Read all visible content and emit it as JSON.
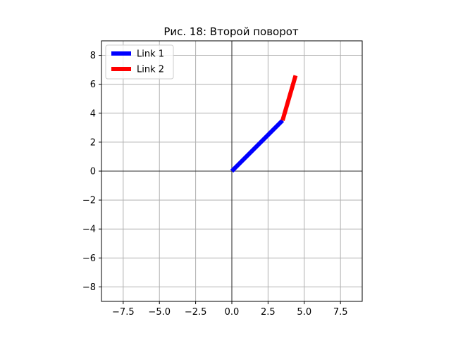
{
  "chart_data": {
    "type": "line",
    "title": "Рис. 18: Второй поворот",
    "xlabel": "",
    "ylabel": "",
    "xlim": [
      -9,
      9
    ],
    "ylim": [
      -9,
      9
    ],
    "xticks": [
      -7.5,
      -5.0,
      -2.5,
      0.0,
      2.5,
      5.0,
      7.5
    ],
    "xtick_labels": [
      "−7.5",
      "−5.0",
      "−2.5",
      "0.0",
      "2.5",
      "5.0",
      "7.5"
    ],
    "yticks": [
      -8,
      -6,
      -4,
      -2,
      0,
      2,
      4,
      6,
      8
    ],
    "ytick_labels": [
      "−8",
      "−6",
      "−4",
      "−2",
      "0",
      "2",
      "4",
      "6",
      "8"
    ],
    "grid": true,
    "axis_lines_through_origin": true,
    "legend_position": "top-left",
    "series": [
      {
        "name": "Link 1",
        "color": "#0000ff",
        "x": [
          0,
          3.5
        ],
        "y": [
          0,
          3.5
        ]
      },
      {
        "name": "Link 2",
        "color": "#ff0000",
        "x": [
          3.5,
          4.4
        ],
        "y": [
          3.5,
          6.6
        ]
      }
    ]
  }
}
